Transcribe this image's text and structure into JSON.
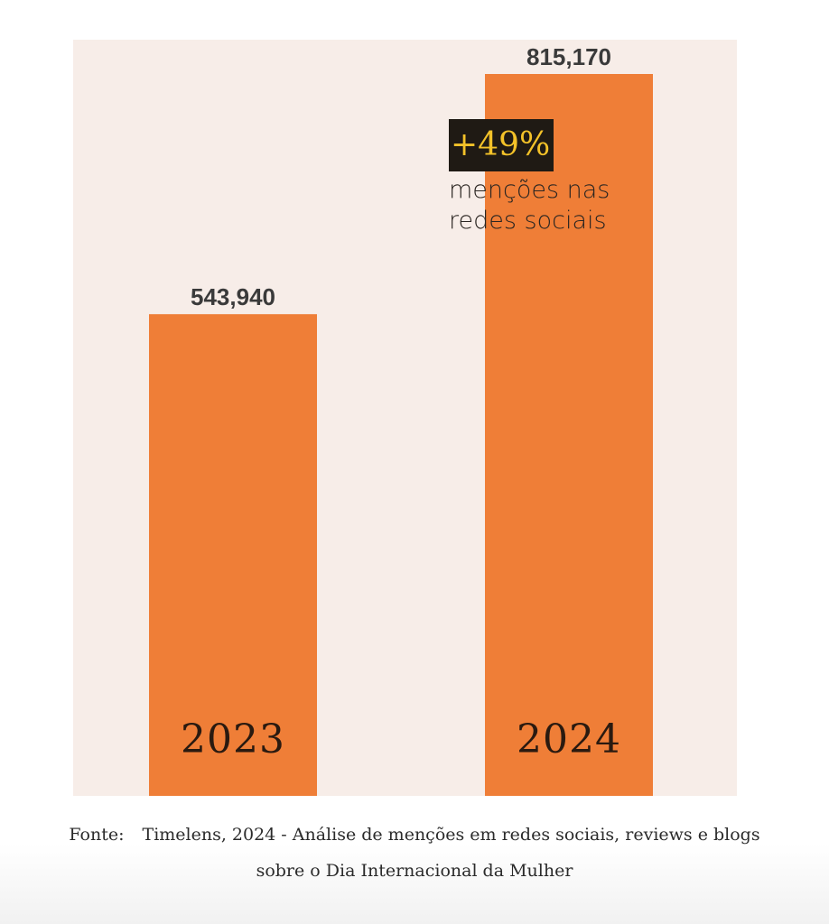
{
  "chart_data": {
    "type": "bar",
    "categories": [
      "2023",
      "2024"
    ],
    "values": [
      543940,
      815170
    ],
    "value_labels": [
      "543,940",
      "815,170"
    ],
    "annotation": {
      "percent": "+49%",
      "text_line1": "menções nas",
      "text_line2": "redes sociais"
    },
    "colors": {
      "bar": "#ef7e37",
      "background": "#f7ede8",
      "annotation_bg": "#1f1a14",
      "annotation_text": "#f3c229"
    }
  },
  "source": {
    "label": "Fonte:",
    "line1": "Timelens, 2024 - Análise de menções em redes sociais, reviews e blogs",
    "line2": "sobre o Dia Internacional da Mulher"
  }
}
